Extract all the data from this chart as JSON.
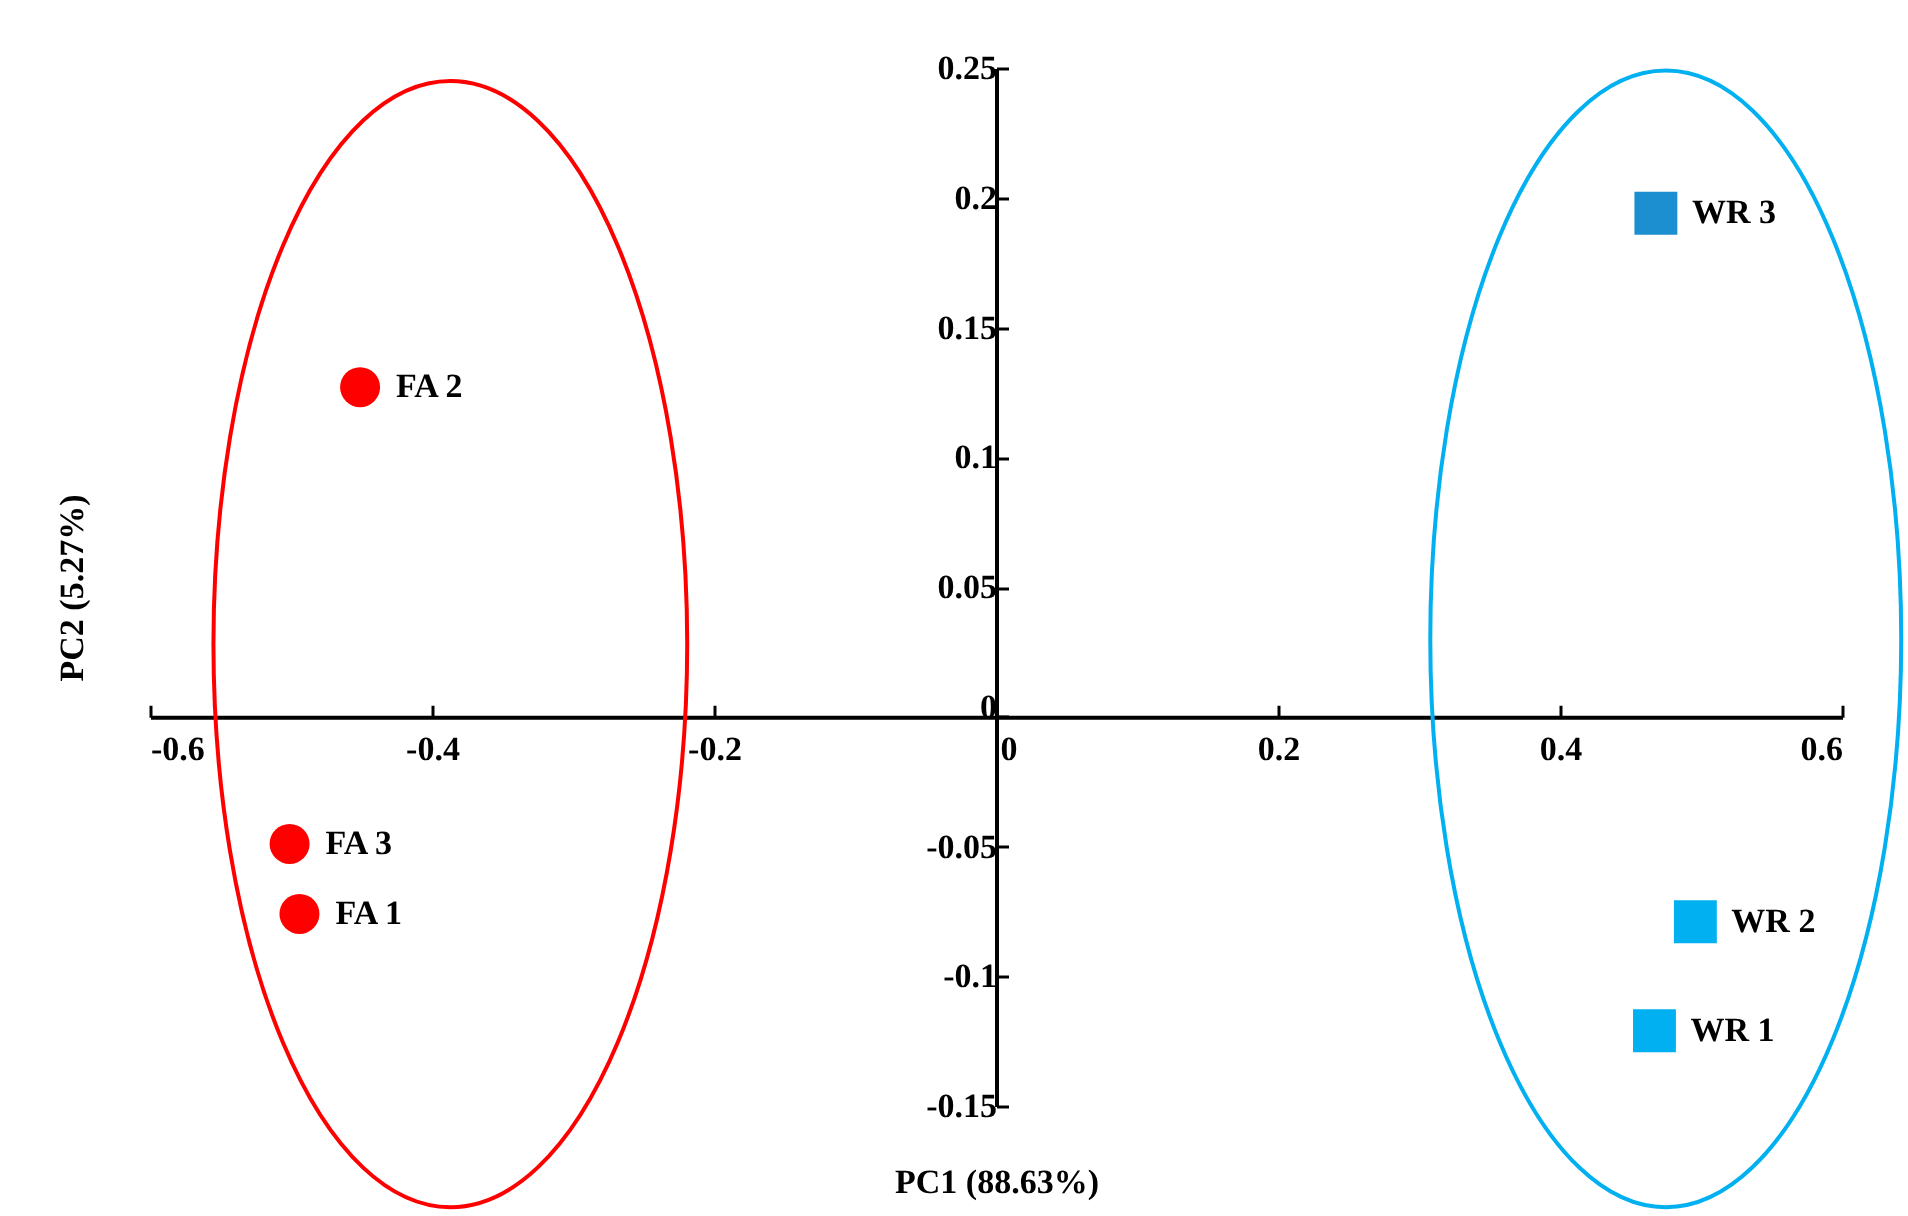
{
  "chart_data": {
    "type": "scatter",
    "xlabel": "PC1 (88.63%)",
    "ylabel": "PC2 (5.27%)",
    "xlim": [
      -0.6,
      0.6
    ],
    "xticks": [
      -0.6,
      -0.4,
      -0.2,
      0,
      0.2,
      0.4,
      0.6
    ],
    "ylim": [
      -0.15,
      0.25
    ],
    "yticks": [
      -0.15,
      -0.1,
      -0.05,
      0,
      0.05,
      0.1,
      0.15,
      0.2,
      0.25
    ],
    "series": [
      {
        "marker": "circle",
        "color": "#ff0000",
        "x": [
          -0.494,
          -0.451,
          -0.501
        ],
        "values": [
          -0.076,
          0.127,
          -0.049
        ]
      },
      {
        "marker": "square",
        "color": "#00b0f0",
        "colors": [
          "#00b0f0",
          "#00b0f0",
          "#1b8fcf"
        ],
        "x": [
          0.467,
          0.496,
          0.468
        ],
        "values": [
          -0.121,
          -0.079,
          0.194
        ]
      }
    ],
    "annotations": [
      {
        "text": "FA 1",
        "x": -0.494,
        "y": -0.076
      },
      {
        "text": "FA 2",
        "x": -0.451,
        "y": 0.127
      },
      {
        "text": "FA 3",
        "x": -0.501,
        "y": -0.049
      },
      {
        "text": "WR 1",
        "x": 0.467,
        "y": -0.121
      },
      {
        "text": "WR 2",
        "x": 0.496,
        "y": -0.079
      },
      {
        "text": "WR 3",
        "x": 0.468,
        "y": 0.194
      }
    ]
  }
}
